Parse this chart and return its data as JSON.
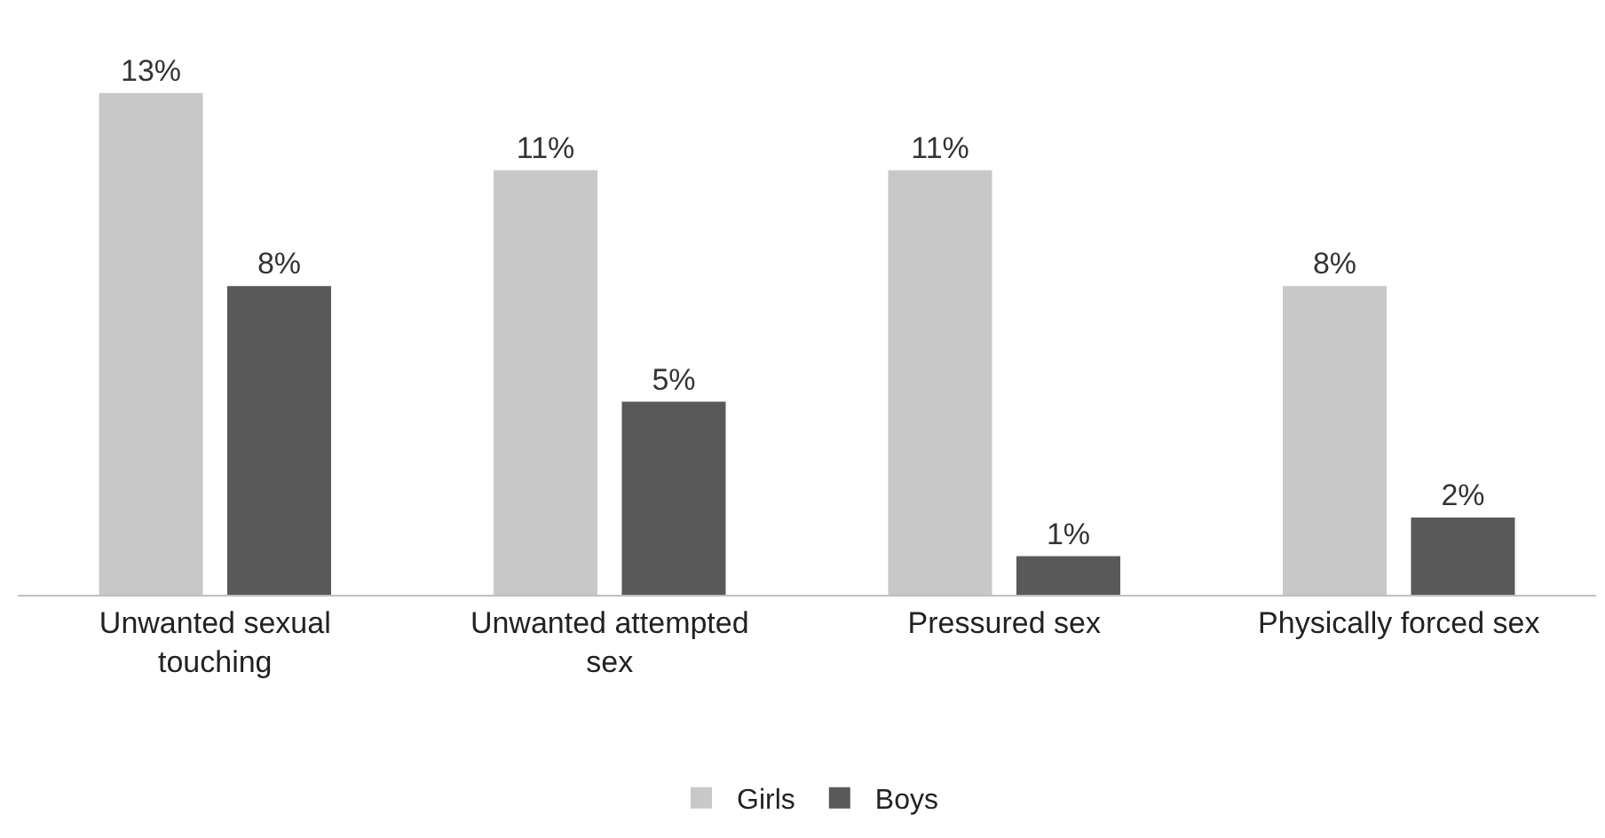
{
  "chart_data": {
    "type": "bar",
    "categories": [
      "Unwanted sexual touching",
      "Unwanted attempted sex",
      "Pressured sex",
      "Physically forced sex"
    ],
    "series": [
      {
        "name": "Girls",
        "color": "#c8c8c8",
        "values": [
          13,
          11,
          11,
          8
        ],
        "value_labels": [
          "13%",
          "11%",
          "11%",
          "8%"
        ]
      },
      {
        "name": "Boys",
        "color": "#595959",
        "values": [
          8,
          5,
          1,
          2
        ],
        "value_labels": [
          "8%",
          "5%",
          "1%",
          "2%"
        ]
      }
    ],
    "legend": "bottom"
  }
}
